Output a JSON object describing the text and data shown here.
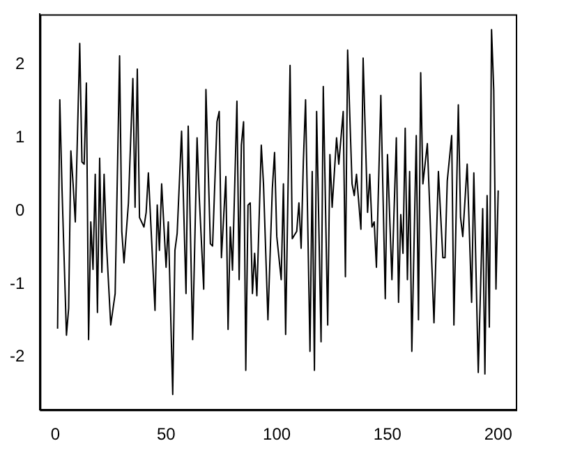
{
  "chart_data": {
    "type": "line",
    "x": [
      1,
      2,
      3,
      5,
      6,
      7,
      8,
      9,
      11,
      12,
      13,
      14,
      15,
      16,
      17,
      18,
      19,
      20,
      21,
      22,
      23,
      25,
      27,
      29,
      30,
      31,
      33,
      35,
      36,
      37,
      38,
      40,
      41,
      42,
      45,
      46,
      47,
      48,
      50,
      51,
      53,
      54,
      55,
      57,
      59,
      60,
      62,
      64,
      65,
      67,
      68,
      70,
      71,
      73,
      74,
      75,
      77,
      78,
      79,
      80,
      82,
      83,
      84,
      85,
      86,
      87,
      88,
      89,
      90,
      91,
      93,
      94,
      96,
      98,
      99,
      100,
      102,
      103,
      104,
      106,
      107,
      109,
      110,
      111,
      112,
      113,
      115,
      116,
      117,
      118,
      120,
      121,
      123,
      124,
      125,
      127,
      128,
      130,
      131,
      132,
      134,
      135,
      136,
      138,
      139,
      141,
      142,
      143,
      144,
      145,
      147,
      149,
      150,
      152,
      154,
      155,
      156,
      157,
      158,
      159,
      160,
      161,
      163,
      164,
      165,
      166,
      168,
      169,
      171,
      173,
      175,
      176,
      177,
      179,
      180,
      182,
      183,
      184,
      186,
      188,
      189,
      191,
      193,
      194,
      195,
      196,
      197,
      198,
      199,
      200
    ],
    "values": [
      -1.61,
      1.52,
      0.3,
      -1.7,
      -1.33,
      0.82,
      0.37,
      -0.15,
      2.29,
      0.67,
      0.64,
      1.75,
      -1.76,
      -0.15,
      -0.8,
      0.5,
      -1.39,
      0.72,
      -0.84,
      0.5,
      -0.41,
      -1.56,
      -1.13,
      2.12,
      -0.28,
      -0.71,
      0.11,
      1.81,
      0.05,
      1.94,
      -0.09,
      -0.22,
      -0.02,
      0.52,
      -1.36,
      0.08,
      -0.54,
      0.37,
      -0.77,
      -0.15,
      -2.51,
      -0.54,
      -0.31,
      1.09,
      -1.13,
      1.16,
      -1.76,
      1.0,
      0.18,
      -1.07,
      1.66,
      -0.45,
      -0.48,
      1.22,
      1.36,
      -0.64,
      0.47,
      -1.62,
      -0.22,
      -0.81,
      1.5,
      -0.94,
      0.9,
      1.22,
      -2.18,
      0.08,
      0.11,
      -1.13,
      -0.58,
      -1.16,
      0.9,
      0.37,
      -1.49,
      0.31,
      0.8,
      -0.35,
      -0.94,
      0.37,
      -1.69,
      1.99,
      -0.38,
      -0.28,
      0.11,
      -0.51,
      0.67,
      1.52,
      -1.92,
      0.54,
      -2.18,
      1.36,
      -1.79,
      1.7,
      -1.56,
      0.77,
      0.05,
      1.0,
      0.64,
      1.36,
      -0.9,
      2.2,
      0.37,
      0.21,
      0.5,
      -0.25,
      2.09,
      -0.02,
      0.5,
      -0.22,
      -0.15,
      -0.77,
      1.58,
      -1.2,
      0.77,
      -0.94,
      1.0,
      -1.25,
      -0.05,
      -0.58,
      1.13,
      -0.94,
      0.54,
      -1.92,
      1.03,
      -1.49,
      1.89,
      0.37,
      0.92,
      0.11,
      -1.53,
      0.54,
      -0.64,
      -0.64,
      0.41,
      1.03,
      -1.56,
      1.45,
      -0.09,
      -0.35,
      0.64,
      -1.25,
      0.52,
      -2.21,
      0.03,
      -2.23,
      0.21,
      -1.59,
      2.48,
      1.65,
      -1.07,
      0.28
    ],
    "color": "#000000",
    "xlim": [
      -6.96,
      207.96
    ],
    "xticks": [
      0,
      50,
      100,
      150,
      200
    ],
    "ylim": [
      -2.72,
      2.69
    ],
    "yticks": [
      -2,
      -1,
      0,
      1,
      2
    ],
    "marker": "none",
    "line_style": "solid"
  }
}
